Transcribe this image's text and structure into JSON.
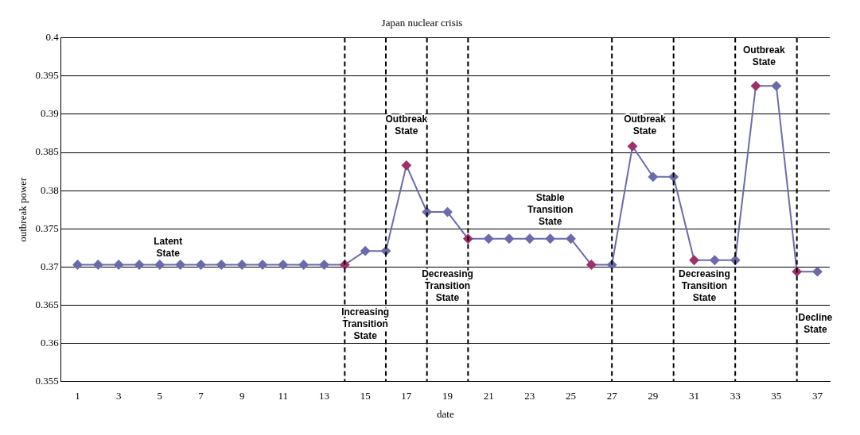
{
  "chart_data": {
    "type": "line",
    "title": "Japan nuclear crisis",
    "xlabel": "date",
    "ylabel": "outbreak power",
    "x": [
      1,
      2,
      3,
      4,
      5,
      6,
      7,
      8,
      9,
      10,
      11,
      12,
      13,
      14,
      15,
      16,
      17,
      18,
      19,
      20,
      21,
      22,
      23,
      24,
      25,
      26,
      27,
      28,
      29,
      30,
      31,
      32,
      33,
      34,
      35,
      36,
      37
    ],
    "series": [
      {
        "color": "#6b6bab",
        "values": [
          0.3703,
          0.3703,
          0.3703,
          0.3703,
          0.3703,
          0.3703,
          0.3703,
          0.3703,
          0.3703,
          0.3703,
          0.3703,
          0.3703,
          0.3703,
          0.3703,
          0.3721,
          0.3721,
          0.3833,
          0.3772,
          0.3772,
          0.3737,
          0.3737,
          0.3737,
          0.3737,
          0.3737,
          0.3737,
          0.3703,
          0.3703,
          0.3858,
          0.3818,
          0.3818,
          0.3709,
          0.3709,
          0.3709,
          0.3937,
          0.3937,
          0.3694,
          0.3694
        ],
        "colors": [
          "#6b6bab",
          "#6b6bab",
          "#6b6bab",
          "#6b6bab",
          "#6b6bab",
          "#6b6bab",
          "#6b6bab",
          "#6b6bab",
          "#6b6bab",
          "#6b6bab",
          "#6b6bab",
          "#6b6bab",
          "#6b6bab",
          "#a0306a",
          "#6b6bab",
          "#6b6bab",
          "#a0306a",
          "#6b6bab",
          "#6b6bab",
          "#a0306a",
          "#6b6bab",
          "#6b6bab",
          "#6b6bab",
          "#6b6bab",
          "#6b6bab",
          "#a0306a",
          "#6b6bab",
          "#a0306a",
          "#6b6bab",
          "#6b6bab",
          "#a0306a",
          "#6b6bab",
          "#6b6bab",
          "#a0306a",
          "#6b6bab",
          "#a0306a",
          "#6b6bab"
        ]
      }
    ],
    "xlim": [
      0.2,
      37.6
    ],
    "xticks": [
      1,
      3,
      5,
      7,
      9,
      11,
      13,
      15,
      17,
      19,
      21,
      23,
      25,
      27,
      29,
      31,
      33,
      35,
      37
    ],
    "ylim": [
      0.355,
      0.4
    ],
    "yticks": [
      0.355,
      0.36,
      0.365,
      0.37,
      0.375,
      0.38,
      0.385,
      0.39,
      0.395,
      0.4
    ],
    "grid": "y",
    "legend": false,
    "marker": "diamond",
    "line_style": "solid",
    "ref_lines": [
      {
        "axis": "x",
        "value": 14,
        "color": "#000000",
        "line_style": "dashed"
      },
      {
        "axis": "x",
        "value": 16,
        "color": "#000000",
        "line_style": "dashed"
      },
      {
        "axis": "x",
        "value": 18,
        "color": "#000000",
        "line_style": "dashed"
      },
      {
        "axis": "x",
        "value": 20,
        "color": "#000000",
        "line_style": "dashed"
      },
      {
        "axis": "x",
        "value": 27,
        "color": "#000000",
        "line_style": "dashed"
      },
      {
        "axis": "x",
        "value": 30,
        "color": "#000000",
        "line_style": "dashed"
      },
      {
        "axis": "x",
        "value": 33,
        "color": "#000000",
        "line_style": "dashed"
      },
      {
        "axis": "x",
        "value": 36,
        "color": "#000000",
        "line_style": "dashed"
      }
    ],
    "annotations": [
      "Latent State",
      "Increasing Transition State",
      "Outbreak State",
      "Decreasing Transition State",
      "Stable Transition State",
      "Outbreak State",
      "Decreasing Transition State",
      "Outbreak State",
      "Decline State"
    ]
  }
}
